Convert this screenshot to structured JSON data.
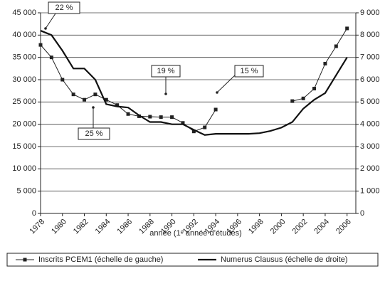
{
  "chart_data": {
    "type": "line",
    "x_label": "année (1ᵉ année d’études)",
    "x": [
      1978,
      1979,
      1980,
      1981,
      1982,
      1983,
      1984,
      1985,
      1986,
      1987,
      1988,
      1989,
      1990,
      1991,
      1992,
      1993,
      1994,
      1995,
      1996,
      1997,
      1998,
      1999,
      2000,
      2001,
      2002,
      2003,
      2004,
      2005,
      2006
    ],
    "xlim": [
      1978,
      2006.8
    ],
    "xticks": [
      1978,
      1980,
      1982,
      1984,
      1986,
      1988,
      1990,
      1992,
      1994,
      1996,
      1998,
      2000,
      2002,
      2004,
      2006
    ],
    "ylim": [
      0,
      45000
    ],
    "yticks": [
      0,
      {
        "value": 5000,
        "label": "5 000"
      },
      {
        "value": 10000,
        "label": "10 000"
      },
      {
        "value": 15000,
        "label": "15 000"
      },
      {
        "value": 20000,
        "label": "20 000"
      },
      {
        "value": 25000,
        "label": "25 000"
      },
      {
        "value": 30000,
        "label": "30 000"
      },
      {
        "value": 35000,
        "label": "35 000"
      },
      {
        "value": 40000,
        "label": "40 000"
      },
      {
        "value": 45000,
        "label": "45 000"
      }
    ],
    "y2lim": [
      0,
      9000
    ],
    "y2ticks": [
      0,
      {
        "value": 1000,
        "label": "1 000"
      },
      {
        "value": 2000,
        "label": "2 000"
      },
      {
        "value": 3000,
        "label": "3 000"
      },
      {
        "value": 4000,
        "label": "4 000"
      },
      {
        "value": 5000,
        "label": "5 000"
      },
      {
        "value": 6000,
        "label": "6 000"
      },
      {
        "value": 7000,
        "label": "7 000"
      },
      {
        "value": 8000,
        "label": "8 000"
      },
      {
        "value": 9000,
        "label": "9 000"
      }
    ],
    "grid": true,
    "series": [
      {
        "name": "Inscrits PCEM1 (échelle de gauche)",
        "color": "#222222",
        "marker": true,
        "values": [
          37800,
          35000,
          30000,
          26700,
          25500,
          26700,
          25500,
          24300,
          22300,
          21800,
          21700,
          21600,
          21600,
          20300,
          18400,
          19300,
          23300,
          null,
          null,
          null,
          null,
          null,
          null,
          25200,
          25800,
          28000,
          33600,
          37500,
          41500
        ]
      },
      {
        "name": "Numerus Clausus (échelle de droite)",
        "color": "#111111",
        "axis": "y2",
        "marker": false,
        "values": [
          8200,
          8000,
          7300,
          6500,
          6500,
          6000,
          4900,
          4800,
          4750,
          4400,
          4100,
          4100,
          4000,
          4000,
          3750,
          3520,
          3570,
          3570,
          3570,
          3570,
          3600,
          3700,
          3850,
          4100,
          4700,
          5100,
          5400,
          6200,
          7000
        ]
      }
    ],
    "annotations": [
      "22 %",
      "19 %",
      "15 %",
      "25 %"
    ]
  }
}
